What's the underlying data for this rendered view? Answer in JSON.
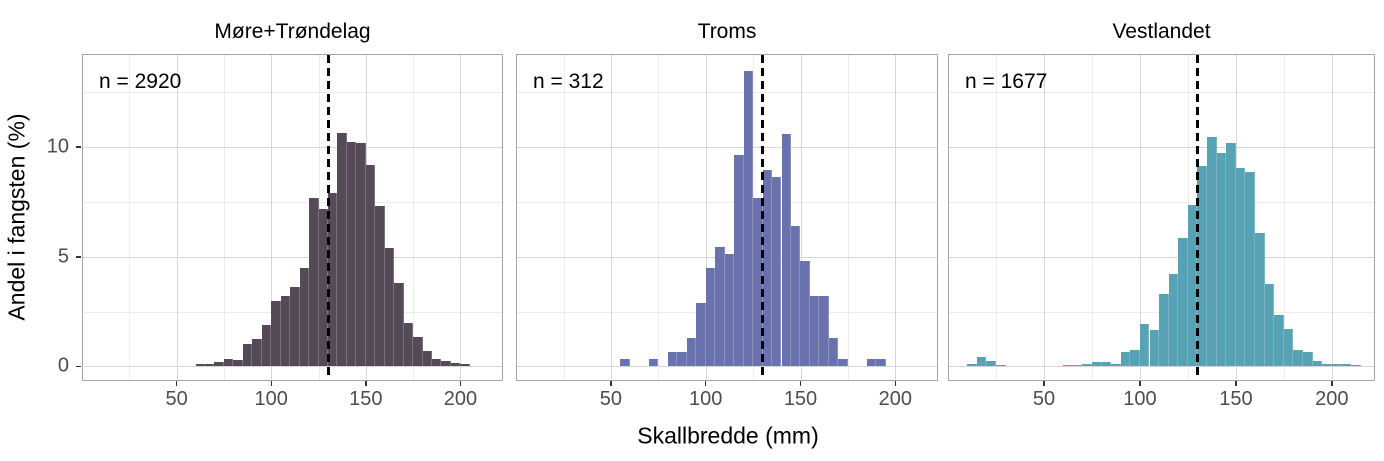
{
  "figure": {
    "x_axis_label": "Skallbredde (mm)",
    "y_axis_label": "Andel i fangsten (%)",
    "x_tick_labels": [
      "50",
      "100",
      "150",
      "200"
    ],
    "x_tick_values": [
      50,
      100,
      150,
      200
    ],
    "x_minor_values": [
      25,
      75,
      125,
      175
    ],
    "y_tick_labels": [
      "0",
      "5",
      "10"
    ],
    "y_tick_values": [
      0,
      5,
      10
    ],
    "y_minor_values": [
      2.5,
      7.5,
      12.5
    ],
    "x_range": [
      0.5,
      222
    ],
    "y_range": [
      -0.62,
      14.2
    ],
    "reference_line_x": 130,
    "grid": "on",
    "colors": {
      "background": "#ffffff",
      "panel_border": "#a6a6a6",
      "grid_major": "#d6d6d6",
      "grid_minor": "#ececec",
      "tick_mark": "#333333",
      "tick_label": "#4d4d4d",
      "reference_line": "#000000",
      "fill_more_trondelag": "#544a58",
      "fill_troms": "#6a72ae",
      "fill_vestlandet": "#57a2b4"
    }
  },
  "chart_data": [
    {
      "type": "bar",
      "subtype": "histogram",
      "title": "Møre+Trøndelag",
      "annotation": "n = 2920",
      "n": 2920,
      "fill": "#544a58",
      "xlabel": "Skallbredde (mm)",
      "ylabel": "Andel i fangsten (%)",
      "vline_x": 130,
      "bin_width": 5,
      "bin_start": [
        60,
        65,
        70,
        75,
        80,
        85,
        90,
        95,
        100,
        105,
        110,
        115,
        120,
        125,
        130,
        135,
        140,
        145,
        150,
        155,
        160,
        165,
        170,
        175,
        180,
        185,
        190,
        195,
        200
      ],
      "percent": [
        0.1,
        0.1,
        0.2,
        0.35,
        0.3,
        1.0,
        1.25,
        1.9,
        3.0,
        3.2,
        3.6,
        4.5,
        7.7,
        7.2,
        7.9,
        10.65,
        10.25,
        10.2,
        9.2,
        7.3,
        5.4,
        3.8,
        2.0,
        1.35,
        0.7,
        0.35,
        0.25,
        0.15,
        0.1
      ]
    },
    {
      "type": "bar",
      "subtype": "histogram",
      "title": "Troms",
      "annotation": "n = 312",
      "n": 312,
      "fill": "#6a72ae",
      "xlabel": "Skallbredde (mm)",
      "ylabel": "Andel i fangsten (%)",
      "vline_x": 130,
      "bin_width": 5,
      "bin_start": [
        55,
        70,
        80,
        85,
        90,
        95,
        100,
        105,
        110,
        115,
        120,
        125,
        130,
        135,
        140,
        145,
        150,
        155,
        160,
        165,
        170,
        185,
        190
      ],
      "percent": [
        0.32,
        0.32,
        0.64,
        0.64,
        1.28,
        2.88,
        4.49,
        5.45,
        5.13,
        9.62,
        13.46,
        7.69,
        8.97,
        8.65,
        10.58,
        6.41,
        4.81,
        3.21,
        3.21,
        1.28,
        0.32,
        0.32,
        0.32
      ]
    },
    {
      "type": "bar",
      "subtype": "histogram",
      "title": "Vestlandet",
      "annotation": "n = 1677",
      "n": 1677,
      "fill": "#57a2b4",
      "xlabel": "Skallbredde (mm)",
      "ylabel": "Andel i fangsten (%)",
      "vline_x": 130,
      "bin_width": 5,
      "bin_start": [
        10,
        15,
        20,
        25,
        60,
        65,
        70,
        75,
        80,
        85,
        90,
        95,
        100,
        105,
        110,
        115,
        120,
        125,
        130,
        135,
        140,
        145,
        150,
        155,
        160,
        165,
        170,
        175,
        180,
        185,
        190,
        195,
        200,
        205,
        210
      ],
      "percent": [
        0.12,
        0.42,
        0.24,
        0.06,
        0.06,
        0.06,
        0.12,
        0.18,
        0.18,
        0.12,
        0.64,
        0.75,
        1.95,
        1.65,
        3.3,
        4.2,
        5.85,
        7.35,
        9.15,
        10.45,
        9.75,
        10.2,
        9.05,
        8.85,
        6.1,
        3.75,
        2.35,
        1.7,
        0.75,
        0.64,
        0.25,
        0.12,
        0.1,
        0.1,
        0.06
      ]
    }
  ]
}
